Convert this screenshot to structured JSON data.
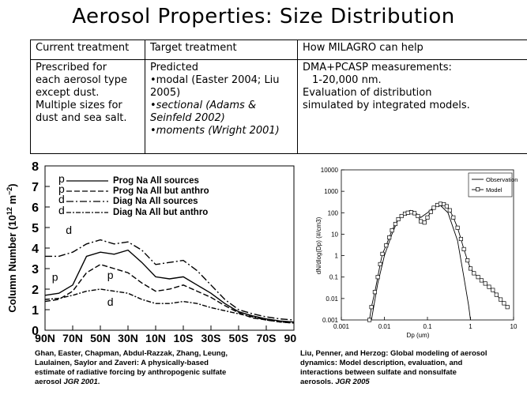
{
  "slide": {
    "title": "Aerosol Properties: Size Distribution"
  },
  "table": {
    "headers": [
      "Current treatment",
      "Target treatment",
      "How MILAGRO can help"
    ],
    "current": [
      "Prescribed for",
      "each aerosol type",
      "except dust.",
      "Multiple sizes for",
      "dust and sea salt."
    ],
    "target": {
      "line1": "Predicted",
      "line2": "•modal (Easter 2004; Liu",
      "line3": "2005)",
      "line4": "•sectional (Adams &",
      "line5": "Seinfeld 2002)",
      "line6": "•moments (Wright 2001)"
    },
    "milagro": [
      "DMA+PCASP measurements:",
      "1-20,000 nm.",
      "Evaluation of distribution",
      "simulated by integrated models."
    ]
  },
  "chart_data": [
    {
      "type": "line",
      "ylabel": "Column Number (10¹² m⁻²)",
      "ylabel_base": "Column Number (10",
      "ylabel_exp": "12",
      "ylabel_unit": " m",
      "ylabel_unit_exp": "−2",
      "ylabel_close": ")",
      "ylim": [
        0,
        8
      ],
      "yticks": [
        "0",
        "1",
        "2",
        "3",
        "4",
        "5",
        "6",
        "7",
        "8"
      ],
      "xticks": [
        "90N",
        "70N",
        "50N",
        "30N",
        "10N",
        "10S",
        "30S",
        "50S",
        "70S",
        "90S"
      ],
      "x": [
        90,
        80,
        70,
        60,
        50,
        40,
        30,
        20,
        10,
        0,
        -10,
        -20,
        -30,
        -40,
        -50,
        -60,
        -70,
        -80,
        -90
      ],
      "series": [
        {
          "name": "Prog Na All sources",
          "marker": "p",
          "values": [
            1.7,
            1.8,
            2.2,
            3.6,
            3.8,
            3.7,
            3.9,
            3.3,
            2.6,
            2.5,
            2.6,
            2.2,
            1.8,
            1.3,
            0.9,
            0.7,
            0.55,
            0.45,
            0.4
          ]
        },
        {
          "name": "Prog Na All but anthro",
          "marker": "p",
          "values": [
            1.4,
            1.5,
            1.9,
            2.8,
            3.2,
            3.0,
            2.8,
            2.3,
            1.9,
            2.0,
            2.2,
            1.9,
            1.6,
            1.2,
            0.85,
            0.6,
            0.5,
            0.4,
            0.35
          ]
        },
        {
          "name": "Diag Na All sources",
          "marker": "d",
          "values": [
            3.6,
            3.6,
            3.8,
            4.2,
            4.4,
            4.2,
            4.3,
            3.9,
            3.2,
            3.3,
            3.4,
            2.9,
            2.2,
            1.5,
            1.0,
            0.8,
            0.65,
            0.55,
            0.5
          ]
        },
        {
          "name": "Diag Na All but anthro",
          "marker": "d",
          "values": [
            1.5,
            1.55,
            1.7,
            1.9,
            2.0,
            1.9,
            1.8,
            1.5,
            1.3,
            1.3,
            1.4,
            1.3,
            1.1,
            0.95,
            0.8,
            0.65,
            0.5,
            0.4,
            0.35
          ]
        }
      ]
    },
    {
      "type": "line",
      "xscale": "log",
      "yscale": "log",
      "xlabel": "Dp (um)",
      "ylabel": "dN/dlog(Dp) (#/cm3)",
      "xlim": [
        0.001,
        10
      ],
      "ylim": [
        0.001,
        10000
      ],
      "xticks": [
        "0.001",
        "0.01",
        "0.1",
        "1",
        "10"
      ],
      "yticks": [
        "10000",
        "1000",
        "100",
        "10",
        "1",
        "0.1",
        "0.01",
        "0.001"
      ],
      "legend": [
        "Observation",
        "Model"
      ],
      "series": [
        {
          "name": "Observation",
          "x": [
            0.005,
            0.007,
            0.01,
            0.015,
            0.02,
            0.03,
            0.04,
            0.05,
            0.07,
            0.1,
            0.15,
            0.2,
            0.3,
            0.5,
            0.7,
            0.9,
            1.0
          ],
          "y": [
            0.001,
            0.05,
            1,
            10,
            40,
            100,
            130,
            110,
            60,
            100,
            200,
            220,
            100,
            5,
            0.1,
            0.005,
            0.001
          ]
        },
        {
          "name": "Model",
          "x": [
            0.0045,
            0.005,
            0.006,
            0.007,
            0.008,
            0.009,
            0.011,
            0.013,
            0.015,
            0.018,
            0.021,
            0.025,
            0.03,
            0.035,
            0.042,
            0.05,
            0.06,
            0.07,
            0.085,
            0.1,
            0.12,
            0.14,
            0.17,
            0.2,
            0.24,
            0.28,
            0.33,
            0.4,
            0.5,
            0.6,
            0.7,
            0.85,
            1.0,
            1.2,
            1.5,
            1.8,
            2.2,
            2.7,
            3.3,
            4.0,
            5.0,
            6.0,
            7.2
          ],
          "y": [
            0.001,
            0.004,
            0.02,
            0.1,
            0.4,
            1.2,
            3,
            7,
            15,
            30,
            50,
            70,
            90,
            100,
            105,
            95,
            70,
            40,
            35,
            60,
            110,
            170,
            230,
            260,
            250,
            200,
            130,
            60,
            20,
            6,
            2,
            0.6,
            0.25,
            0.15,
            0.1,
            0.07,
            0.05,
            0.035,
            0.025,
            0.015,
            0.009,
            0.006,
            0.004
          ]
        }
      ]
    }
  ],
  "captions": {
    "left": [
      "Ghan, Easter, Chapman, Abdul-Razzak, Zhang, Leung,",
      "Laulainen, Saylor and Zaveri: A physically-based",
      "estimate of radiative forcing by anthropogenic sulfate"
    ],
    "left_last": "aerosol ",
    "left_journal": "JGR 2001",
    "left_end": ".",
    "right": [
      "Liu, Penner, and Herzog: Global modeling of aerosol",
      "dynamics: Model description, evaluation, and",
      "interactions between sulfate and nonsulfate"
    ],
    "right_last": "aerosols. ",
    "right_journal": "JGR 2005"
  }
}
